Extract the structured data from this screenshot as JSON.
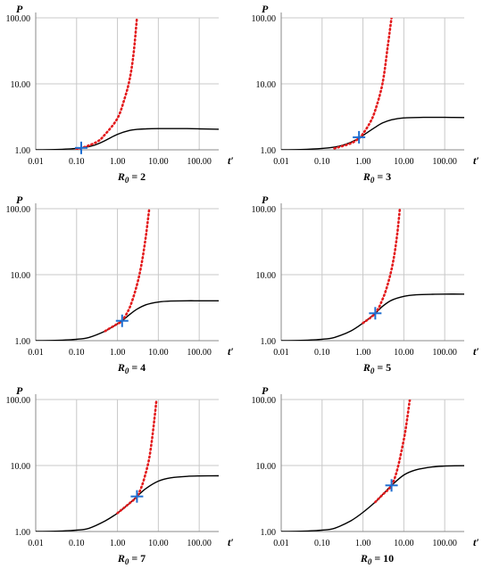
{
  "chart_data": [
    {
      "type": "line",
      "xscale": "log",
      "yscale": "log",
      "xlim": [
        0.01,
        300
      ],
      "ylim": [
        1,
        100
      ],
      "grid": true,
      "ylabel": "P",
      "xlabel": "t′",
      "caption": "R0 = 2",
      "caption_prefix": "R",
      "caption_sub": "0",
      "caption_rest": " = 2",
      "xticks": [
        0.01,
        0.1,
        1,
        10,
        100
      ],
      "xtick_labels": [
        "0.01",
        "0.10",
        "1.00",
        "10.00",
        "100.00"
      ],
      "yticks": [
        1,
        10,
        100
      ],
      "ytick_labels": [
        "1.00",
        "10.00",
        "100.00"
      ],
      "series": [
        {
          "style": "solid",
          "color": "#000000",
          "x": [
            0.01,
            0.03,
            0.1,
            0.2,
            0.3,
            0.5,
            1,
            2,
            3,
            5,
            10,
            20,
            50,
            100,
            300
          ],
          "y": [
            1.0,
            1.01,
            1.05,
            1.12,
            1.2,
            1.38,
            1.72,
            1.97,
            2.04,
            2.08,
            2.1,
            2.1,
            2.1,
            2.08,
            2.05
          ]
        },
        {
          "style": "dotted",
          "color": "#e31a1c",
          "x": [
            0.1,
            0.3,
            0.5,
            1,
            1.5,
            2,
            2.5,
            3
          ],
          "y": [
            1.0,
            1.3,
            1.72,
            3.0,
            6.0,
            12.0,
            30.0,
            100.0
          ]
        }
      ],
      "marker": {
        "x": 0.13,
        "y": 1.07,
        "color": "#1f6fd1"
      }
    },
    {
      "type": "line",
      "xscale": "log",
      "yscale": "log",
      "xlim": [
        0.01,
        300
      ],
      "ylim": [
        1,
        100
      ],
      "grid": true,
      "ylabel": "P",
      "xlabel": "t′",
      "caption": "R0 = 3",
      "caption_prefix": "R",
      "caption_sub": "0",
      "caption_rest": " = 3",
      "xticks": [
        0.01,
        0.1,
        1,
        10,
        100
      ],
      "xtick_labels": [
        "0.01",
        "0.10",
        "1.00",
        "10.00",
        "100.00"
      ],
      "yticks": [
        1,
        10,
        100
      ],
      "ytick_labels": [
        "1.00",
        "10.00",
        "100.00"
      ],
      "series": [
        {
          "style": "solid",
          "color": "#000000",
          "x": [
            0.01,
            0.03,
            0.1,
            0.2,
            0.3,
            0.5,
            0.8,
            1,
            2,
            3,
            5,
            10,
            30,
            100,
            300
          ],
          "y": [
            1.0,
            1.01,
            1.05,
            1.1,
            1.16,
            1.3,
            1.5,
            1.65,
            2.2,
            2.55,
            2.85,
            3.05,
            3.1,
            3.1,
            3.08
          ]
        },
        {
          "style": "dotted",
          "color": "#e31a1c",
          "x": [
            0.2,
            0.5,
            0.8,
            1,
            1.5,
            2,
            3,
            4,
            5
          ],
          "y": [
            1.05,
            1.25,
            1.5,
            1.75,
            2.6,
            4.0,
            10.0,
            35.0,
            100.0
          ]
        }
      ],
      "marker": {
        "x": 0.8,
        "y": 1.55,
        "color": "#1f6fd1"
      }
    },
    {
      "type": "line",
      "xscale": "log",
      "yscale": "log",
      "xlim": [
        0.01,
        300
      ],
      "ylim": [
        1,
        100
      ],
      "grid": true,
      "ylabel": "P",
      "xlabel": "t′",
      "caption": "R0 = 4",
      "caption_prefix": "R",
      "caption_sub": "0",
      "caption_rest": " = 4",
      "xticks": [
        0.01,
        0.1,
        1,
        10,
        100
      ],
      "xtick_labels": [
        "0.01",
        "0.10",
        "1.00",
        "10.00",
        "100.00"
      ],
      "yticks": [
        1,
        10,
        100
      ],
      "ytick_labels": [
        "1.00",
        "10.00",
        "100.00"
      ],
      "series": [
        {
          "style": "solid",
          "color": "#000000",
          "x": [
            0.01,
            0.03,
            0.1,
            0.2,
            0.5,
            1,
            1.3,
            2,
            3,
            5,
            10,
            20,
            50,
            100,
            300
          ],
          "y": [
            1.0,
            1.01,
            1.05,
            1.12,
            1.4,
            1.8,
            2.0,
            2.5,
            3.0,
            3.5,
            3.85,
            3.98,
            4.02,
            4.02,
            4.02
          ]
        },
        {
          "style": "dotted",
          "color": "#e31a1c",
          "x": [
            0.5,
            1,
            1.3,
            2,
            3,
            4,
            5,
            6
          ],
          "y": [
            1.4,
            1.8,
            2.0,
            3.2,
            7.0,
            16.0,
            40.0,
            100.0
          ]
        }
      ],
      "marker": {
        "x": 1.3,
        "y": 2.0,
        "color": "#1f6fd1"
      }
    },
    {
      "type": "line",
      "xscale": "log",
      "yscale": "log",
      "xlim": [
        0.01,
        300
      ],
      "ylim": [
        1,
        100
      ],
      "grid": true,
      "ylabel": "P",
      "xlabel": "t′",
      "caption": "R0 = 5",
      "caption_prefix": "R",
      "caption_sub": "0",
      "caption_rest": " = 5",
      "xticks": [
        0.01,
        0.1,
        1,
        10,
        100
      ],
      "xtick_labels": [
        "0.01",
        "0.10",
        "1.00",
        "10.00",
        "100.00"
      ],
      "yticks": [
        1,
        10,
        100
      ],
      "ytick_labels": [
        "1.00",
        "10.00",
        "100.00"
      ],
      "series": [
        {
          "style": "solid",
          "color": "#000000",
          "x": [
            0.01,
            0.03,
            0.1,
            0.2,
            0.5,
            1,
            2,
            3,
            5,
            10,
            20,
            50,
            100,
            300
          ],
          "y": [
            1.0,
            1.01,
            1.05,
            1.12,
            1.4,
            1.85,
            2.6,
            3.3,
            4.1,
            4.7,
            4.95,
            5.05,
            5.08,
            5.08
          ]
        },
        {
          "style": "dotted",
          "color": "#e31a1c",
          "x": [
            1,
            2,
            3,
            4,
            5,
            6,
            7,
            8
          ],
          "y": [
            1.85,
            2.6,
            4.2,
            7.0,
            12.0,
            22.0,
            45.0,
            100.0
          ]
        }
      ],
      "marker": {
        "x": 2.0,
        "y": 2.6,
        "color": "#1f6fd1"
      }
    },
    {
      "type": "line",
      "xscale": "log",
      "yscale": "log",
      "xlim": [
        0.01,
        300
      ],
      "ylim": [
        1,
        100
      ],
      "grid": true,
      "ylabel": "P",
      "xlabel": "t′",
      "caption": "R0 = 7",
      "caption_prefix": "R",
      "caption_sub": "0",
      "caption_rest": " = 7",
      "xticks": [
        0.01,
        0.1,
        1,
        10,
        100
      ],
      "xtick_labels": [
        "0.01",
        "0.10",
        "1.00",
        "10.00",
        "100.00"
      ],
      "yticks": [
        1,
        10,
        100
      ],
      "ytick_labels": [
        "1.00",
        "10.00",
        "100.00"
      ],
      "series": [
        {
          "style": "solid",
          "color": "#000000",
          "x": [
            0.01,
            0.03,
            0.1,
            0.2,
            0.5,
            1,
            2,
            3,
            5,
            10,
            20,
            50,
            100,
            300
          ],
          "y": [
            1.0,
            1.01,
            1.05,
            1.12,
            1.45,
            1.9,
            2.7,
            3.4,
            4.5,
            5.8,
            6.5,
            6.85,
            6.95,
            7.0
          ]
        },
        {
          "style": "dotted",
          "color": "#e31a1c",
          "x": [
            1,
            2,
            3,
            4,
            5,
            6,
            7,
            8,
            9
          ],
          "y": [
            1.9,
            2.7,
            3.4,
            5.0,
            8.0,
            13.0,
            25.0,
            50.0,
            100.0
          ]
        }
      ],
      "marker": {
        "x": 3.0,
        "y": 3.4,
        "color": "#1f6fd1"
      }
    },
    {
      "type": "line",
      "xscale": "log",
      "yscale": "log",
      "xlim": [
        0.01,
        300
      ],
      "ylim": [
        1,
        100
      ],
      "grid": true,
      "ylabel": "P",
      "xlabel": "t′",
      "caption": "R0 = 10",
      "caption_prefix": "R",
      "caption_sub": "0",
      "caption_rest": " = 10",
      "xticks": [
        0.01,
        0.1,
        1,
        10,
        100
      ],
      "xtick_labels": [
        "0.01",
        "0.10",
        "1.00",
        "10.00",
        "100.00"
      ],
      "yticks": [
        1,
        10,
        100
      ],
      "ytick_labels": [
        "1.00",
        "10.00",
        "100.00"
      ],
      "series": [
        {
          "style": "solid",
          "color": "#000000",
          "x": [
            0.01,
            0.03,
            0.1,
            0.2,
            0.5,
            1,
            2,
            3,
            5,
            10,
            20,
            50,
            100,
            300
          ],
          "y": [
            1.0,
            1.01,
            1.05,
            1.12,
            1.45,
            1.95,
            2.8,
            3.6,
            5.0,
            7.2,
            8.6,
            9.5,
            9.8,
            9.95
          ]
        },
        {
          "style": "dotted",
          "color": "#e31a1c",
          "x": [
            2,
            3,
            5,
            7,
            10,
            12,
            14
          ],
          "y": [
            2.8,
            3.6,
            5.0,
            9.0,
            25.0,
            50.0,
            100.0
          ]
        }
      ],
      "marker": {
        "x": 5.0,
        "y": 5.0,
        "color": "#1f6fd1"
      }
    }
  ]
}
